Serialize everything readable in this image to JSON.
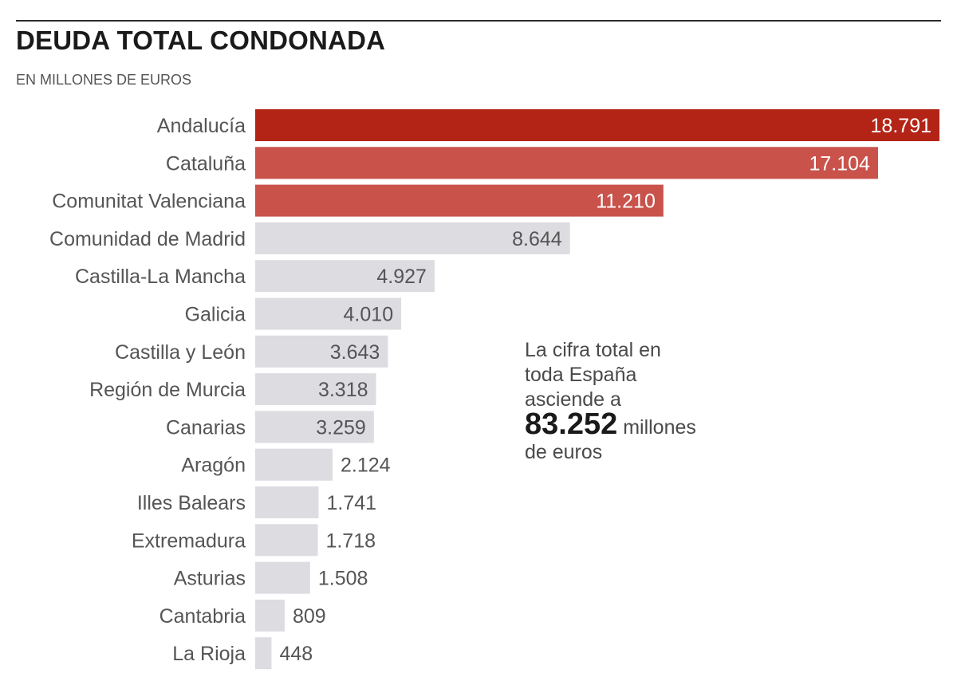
{
  "header": {
    "title": "DEUDA TOTAL CONDONADA",
    "subtitle": "EN MILLONES DE EUROS"
  },
  "annotation": {
    "line1": "La cifra total en",
    "line2": "toda España",
    "line3": "asciende a",
    "total": "83.252",
    "unit_a": "millones",
    "unit_b": "de euros"
  },
  "colors": {
    "highlight_1": "#b32417",
    "highlight_2": "#c9524b",
    "base": "#dcdce1",
    "label_inside_light": "#ffffff",
    "label_dark": "#555555"
  },
  "chart_data": {
    "type": "bar",
    "orientation": "horizontal",
    "title": "DEUDA TOTAL CONDONADA",
    "subtitle": "EN MILLONES DE EUROS",
    "xlim": [
      0,
      18791
    ],
    "grid": false,
    "categories": [
      "Andalucía",
      "Cataluña",
      "Comunitat Valenciana",
      "Comunidad de Madrid",
      "Castilla-La Mancha",
      "Galicia",
      "Castilla y León",
      "Región de Murcia",
      "Canarias",
      "Aragón",
      "Illes Balears",
      "Extremadura",
      "Asturias",
      "Cantabria",
      "La Rioja"
    ],
    "values": [
      18791,
      17104,
      11210,
      8644,
      4927,
      4010,
      3643,
      3318,
      3259,
      2124,
      1741,
      1718,
      1508,
      809,
      448
    ],
    "value_labels": [
      "18.791",
      "17.104",
      "11.210",
      "8.644",
      "4.927",
      "4.010",
      "3.643",
      "3.318",
      "3.259",
      "2.124",
      "1.741",
      "1.718",
      "1.508",
      "809",
      "448"
    ],
    "highlight": [
      "highlight_1",
      "highlight_2",
      "highlight_2",
      "base",
      "base",
      "base",
      "base",
      "base",
      "base",
      "base",
      "base",
      "base",
      "base",
      "base",
      "base"
    ]
  }
}
